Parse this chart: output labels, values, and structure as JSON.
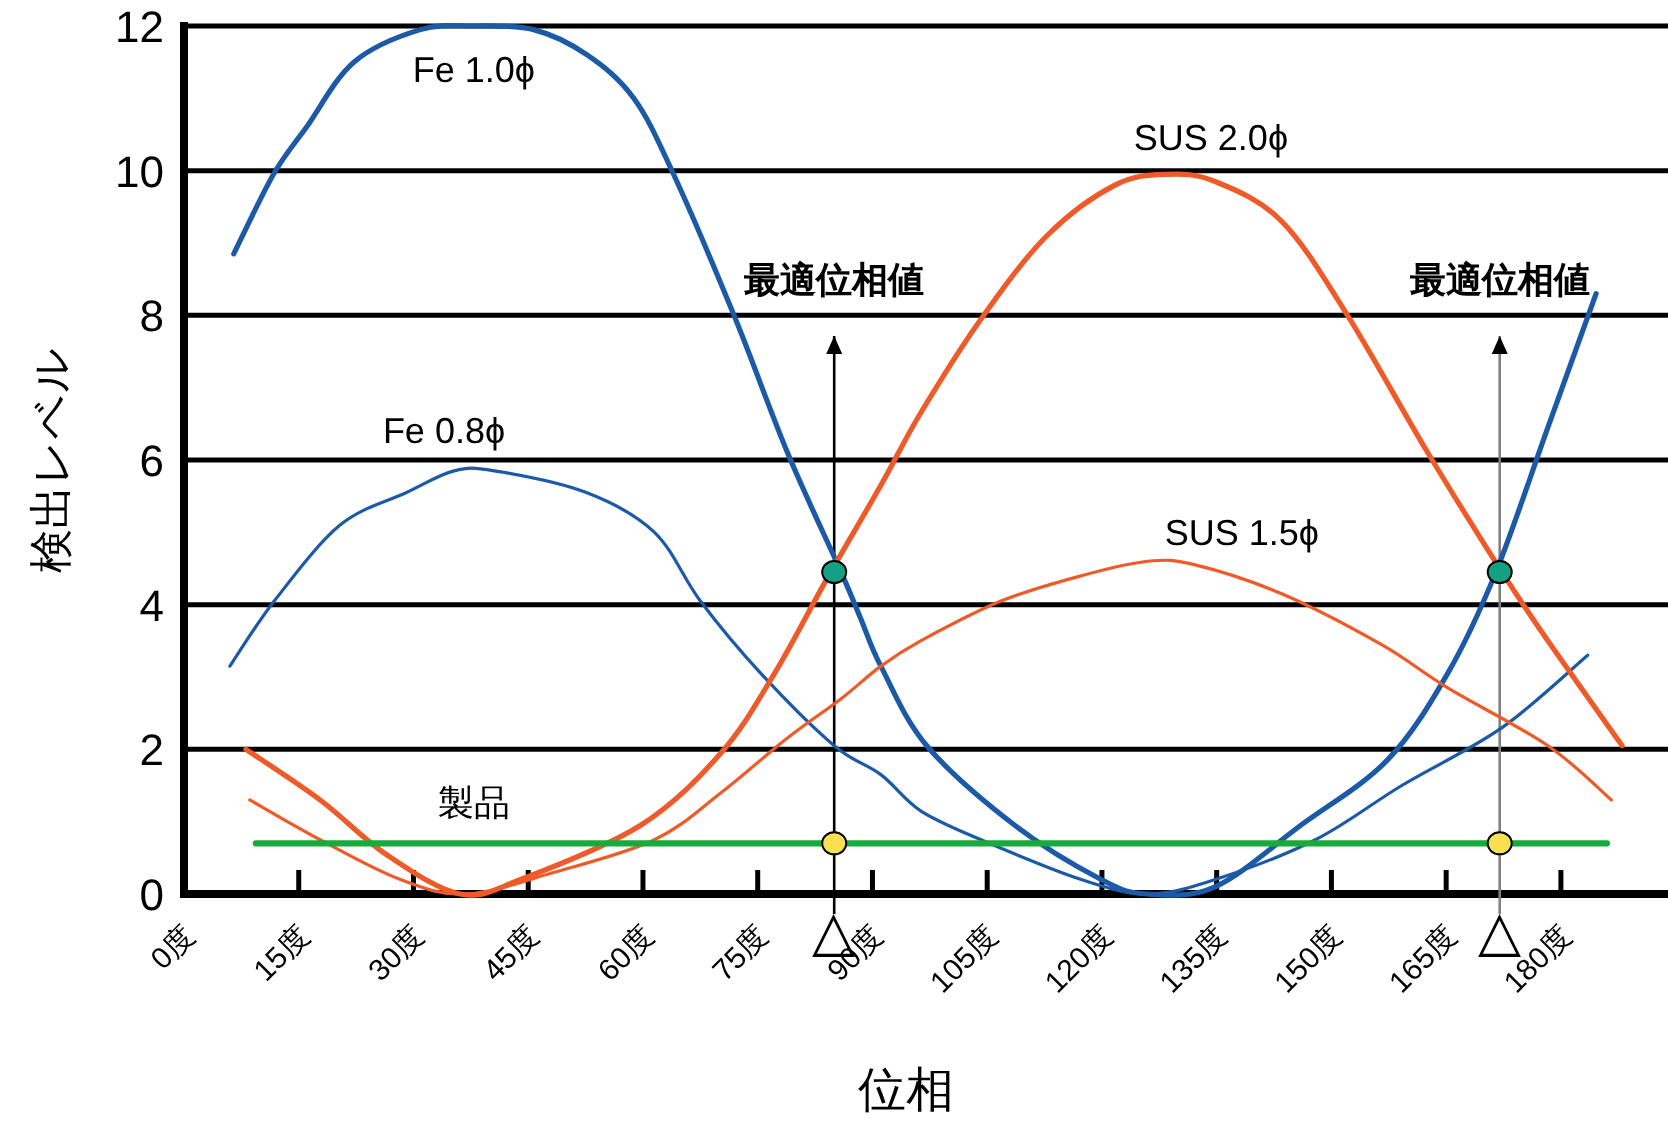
{
  "chart_data": {
    "type": "line",
    "xlabel": "位相",
    "ylabel": "検出レベル",
    "xlim": [
      0,
      194
    ],
    "ylim": [
      0,
      12
    ],
    "xticks": [
      {
        "value": 0,
        "label": "0度"
      },
      {
        "value": 15,
        "label": "15度"
      },
      {
        "value": 30,
        "label": "30度"
      },
      {
        "value": 45,
        "label": "45度"
      },
      {
        "value": 60,
        "label": "60度"
      },
      {
        "value": 75,
        "label": "75度"
      },
      {
        "value": 90,
        "label": "90度"
      },
      {
        "value": 105,
        "label": "105度"
      },
      {
        "value": 120,
        "label": "120度"
      },
      {
        "value": 135,
        "label": "135度"
      },
      {
        "value": 150,
        "label": "150度"
      },
      {
        "value": 165,
        "label": "165度"
      },
      {
        "value": 180,
        "label": "180度"
      }
    ],
    "yticks": [
      0,
      2,
      4,
      6,
      8,
      10,
      12
    ],
    "grid": "y",
    "legend": false,
    "line_style": "solid",
    "series": [
      {
        "name": "Fe 1.0ϕ",
        "color": "#1c5aa8",
        "x": [
          6.5,
          11.7,
          16,
          22.2,
          30.9,
          37.9,
          45.7,
          52.7,
          58.8,
          64,
          71.9,
          78.9,
          85.9,
          88.5,
          91.1,
          97.1,
          108.6,
          119.9,
          125.9,
          134.8,
          146,
          157.3,
          165.2,
          171.5,
          178.3,
          184.6
        ],
        "values": [
          8.85,
          9.95,
          10.6,
          11.5,
          11.95,
          12,
          11.95,
          11.6,
          11,
          9.95,
          8,
          6.1,
          4.45,
          3.8,
          3.15,
          2.05,
          0.95,
          0.2,
          0,
          0.1,
          0.95,
          1.85,
          3.05,
          4.45,
          6.45,
          8.3
        ]
      },
      {
        "name": "Fe 0.8ϕ",
        "color": "#1c5aa8",
        "x": [
          6,
          11.8,
          20.4,
          29.1,
          35.3,
          40.6,
          52.6,
          61.5,
          67.5,
          75.4,
          85,
          91.1,
          96.3,
          104.2,
          117.3,
          126,
          134.8,
          147.9,
          159.2,
          172.3,
          183.5
        ],
        "values": [
          3.15,
          4.05,
          5.1,
          5.55,
          5.85,
          5.85,
          5.55,
          5,
          4.05,
          3.05,
          2.05,
          1.65,
          1.15,
          0.75,
          0.2,
          0,
          0.2,
          0.75,
          1.5,
          2.3,
          3.3
        ]
      },
      {
        "name": "SUS 2.0ϕ",
        "color": "#f05a28",
        "x": [
          8.1,
          17.8,
          26.4,
          36.1,
          44,
          59.7,
          70.2,
          77.2,
          84,
          91.1,
          96.3,
          104.2,
          112.8,
          121.7,
          128.5,
          134.8,
          143.5,
          152.1,
          162.6,
          172.3,
          178.3,
          188
        ],
        "values": [
          2,
          1.3,
          0.55,
          0,
          0.2,
          0.95,
          1.95,
          3.05,
          4.35,
          5.65,
          6.65,
          7.95,
          9.1,
          9.8,
          9.95,
          9.85,
          9.3,
          8,
          6.1,
          4.45,
          3.5,
          2.05
        ]
      },
      {
        "name": "SUS 1.5ϕ",
        "color": "#f05a28",
        "x": [
          8.6,
          17.8,
          28.3,
          36.9,
          48.4,
          61.5,
          70.2,
          78.8,
          85.9,
          91.1,
          96.3,
          106.8,
          117.3,
          126,
          132.2,
          143.5,
          156.5,
          165.2,
          178.3,
          186.6
        ],
        "values": [
          1.3,
          0.75,
          0.2,
          0,
          0.3,
          0.75,
          1.4,
          2.15,
          2.7,
          3.15,
          3.5,
          4.05,
          4.4,
          4.6,
          4.55,
          4.15,
          3.45,
          2.85,
          2.05,
          1.3
        ]
      },
      {
        "name": "製品",
        "color": "#1aaa3c",
        "x": [
          9.4,
          186
        ],
        "values": [
          0.7,
          0.7
        ]
      },
      {
        "type": "scatter",
        "color": "#14a082",
        "x": [
          85,
          172
        ],
        "values": [
          4.45,
          4.45
        ]
      },
      {
        "type": "scatter",
        "color": "#f8e050",
        "x": [
          85,
          172
        ],
        "values": [
          0.7,
          0.7
        ]
      }
    ],
    "ref_lines": [
      {
        "axis": "x",
        "value": 85,
        "label": "最適位相値",
        "color": "#000000"
      },
      {
        "axis": "x",
        "value": 172,
        "label": "最適位相値",
        "color": "#808080"
      }
    ],
    "annotations": [
      "△",
      "△"
    ]
  }
}
